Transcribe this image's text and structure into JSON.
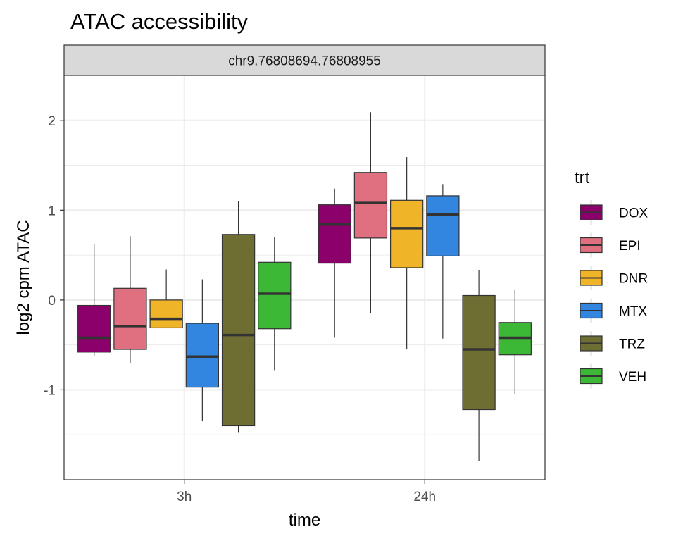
{
  "chart_data": {
    "type": "boxplot",
    "title": "ATAC accessibility",
    "facet_label": "chr9.76808694.76808955",
    "xlabel": "time",
    "ylabel": "log2 cpm ATAC",
    "ylim": [
      -2.0,
      2.5
    ],
    "yticks": [
      {
        "value": -1,
        "label": "-1"
      },
      {
        "value": 0,
        "label": "0"
      },
      {
        "value": 1,
        "label": "1"
      },
      {
        "value": 2,
        "label": "2"
      }
    ],
    "categories": [
      "3h",
      "24h"
    ],
    "legend": {
      "title": "trt",
      "position": "right",
      "entries": [
        "DOX",
        "EPI",
        "DNR",
        "MTX",
        "TRZ",
        "VEH"
      ]
    },
    "grid": true,
    "series": [
      {
        "name": "DOX",
        "color": "#8B006B",
        "boxes": [
          {
            "whisker_low": -0.62,
            "q1": -0.58,
            "median": -0.42,
            "q3": -0.06,
            "whisker_high": 0.62
          },
          {
            "whisker_low": -0.42,
            "q1": 0.41,
            "median": 0.84,
            "q3": 1.06,
            "whisker_high": 1.24
          }
        ]
      },
      {
        "name": "EPI",
        "color": "#E07080",
        "boxes": [
          {
            "whisker_low": -0.7,
            "q1": -0.55,
            "median": -0.29,
            "q3": 0.13,
            "whisker_high": 0.71
          },
          {
            "whisker_low": -0.15,
            "q1": 0.69,
            "median": 1.08,
            "q3": 1.42,
            "whisker_high": 2.09
          }
        ]
      },
      {
        "name": "DNR",
        "color": "#F0B428",
        "boxes": [
          {
            "whisker_low": -0.31,
            "q1": -0.31,
            "median": -0.21,
            "q3": 0.0,
            "whisker_high": 0.34
          },
          {
            "whisker_low": -0.55,
            "q1": 0.36,
            "median": 0.8,
            "q3": 1.11,
            "whisker_high": 1.59
          }
        ]
      },
      {
        "name": "MTX",
        "color": "#3386E0",
        "boxes": [
          {
            "whisker_low": -1.35,
            "q1": -0.97,
            "median": -0.63,
            "q3": -0.26,
            "whisker_high": 0.23
          },
          {
            "whisker_low": -0.43,
            "q1": 0.49,
            "median": 0.95,
            "q3": 1.16,
            "whisker_high": 1.29
          }
        ]
      },
      {
        "name": "TRZ",
        "color": "#6E6E32",
        "boxes": [
          {
            "whisker_low": -1.47,
            "q1": -1.4,
            "median": -0.39,
            "q3": 0.73,
            "whisker_high": 1.1
          },
          {
            "whisker_low": -1.79,
            "q1": -1.22,
            "median": -0.55,
            "q3": 0.05,
            "whisker_high": 0.33
          }
        ]
      },
      {
        "name": "VEH",
        "color": "#3CB836",
        "boxes": [
          {
            "whisker_low": -0.78,
            "q1": -0.32,
            "median": 0.07,
            "q3": 0.42,
            "whisker_high": 0.7
          },
          {
            "whisker_low": -1.05,
            "q1": -0.61,
            "median": -0.42,
            "q3": -0.25,
            "whisker_high": 0.11
          }
        ]
      }
    ]
  }
}
